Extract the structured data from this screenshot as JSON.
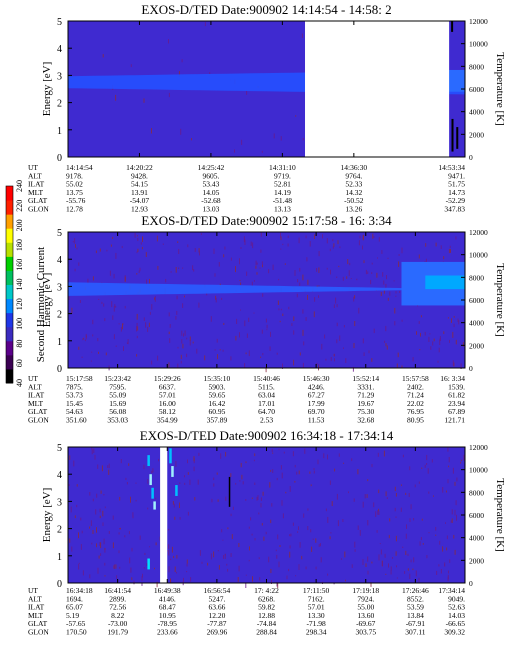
{
  "figure": {
    "colorbar": {
      "label": "Second Harmonic Current",
      "ticks": [
        "40",
        "60",
        "80",
        "100",
        "120",
        "140",
        "160",
        "180",
        "200",
        "220",
        "240"
      ],
      "colors": [
        "#000000",
        "#3a0052",
        "#5a008a",
        "#3b2bbf",
        "#1f36e6",
        "#0088ff",
        "#00c8c8",
        "#00c060",
        "#00d000",
        "#b8e000",
        "#ffff00",
        "#ffa000",
        "#ff2000",
        "#ff0000"
      ]
    },
    "background_color": "#3f2ad0"
  },
  "chart_data": [
    {
      "type": "heatmap",
      "title": "EXOS-D/TED   Date:900902  14:14:54 - 14:58: 2",
      "ylabel": "Energy [eV]",
      "ylabel_right": "Temperature [K]",
      "ylim": [
        0,
        5
      ],
      "yticks": [
        "0",
        "1",
        "2",
        "3",
        "4",
        "5"
      ],
      "ylim_right": [
        0,
        12000
      ],
      "yticks_right": [
        "0",
        "2000",
        "4000",
        "6000",
        "8000",
        "10000",
        "12000"
      ],
      "orbit_rows": [
        "UT",
        "ALT",
        "ILAT",
        "MLT",
        "GLAT",
        "GLON"
      ],
      "orbit_columns": [
        [
          "14:14:54",
          "9178.",
          "55.02",
          "13.75",
          "-55.76",
          "12.78"
        ],
        [
          "14:20:22",
          "9428.",
          "54.15",
          "13.91",
          "-54.07",
          "12.93"
        ],
        [
          "14:25:42",
          "9605.",
          "53.43",
          "14.05",
          "-52.68",
          "13.03"
        ],
        [
          "14:31:10",
          "9719.",
          "52.81",
          "14.19",
          "-51.48",
          "13.13"
        ],
        [
          "14:36:30",
          "9764.",
          "52.33",
          "14.32",
          "-50.52",
          "13.26"
        ],
        [
          "14:53:34",
          "9471.",
          "51.75",
          "14.73",
          "-52.29",
          "347.83"
        ]
      ],
      "column_x": [
        0.0,
        0.18,
        0.36,
        0.54,
        0.72,
        1.0
      ],
      "data_gaps": [
        [
          0.597,
          0.96
        ]
      ],
      "band": {
        "center_ev": 2.75,
        "start_halfwidth_ev": 0.22,
        "end_halfwidth_ev": 0.45,
        "color": "#2550ff"
      }
    },
    {
      "type": "heatmap",
      "title": "EXOS-D/TED   Date:900902  15:17:58 - 16: 3:34",
      "ylabel": "Energy [eV]",
      "ylabel_right": "Temperature [K]",
      "ylim": [
        0,
        5
      ],
      "yticks": [
        "0",
        "1",
        "2",
        "3",
        "4",
        "5"
      ],
      "ylim_right": [
        0,
        12000
      ],
      "yticks_right": [
        "0",
        "2000",
        "4000",
        "6000",
        "8000",
        "10000",
        "12000"
      ],
      "orbit_rows": [
        "UT",
        "ALT",
        "ILAT",
        "MLT",
        "GLAT",
        "GLON"
      ],
      "orbit_columns": [
        [
          "15:17:58",
          "7875.",
          "53.73",
          "15.45",
          "54.63",
          "351.60"
        ],
        [
          "15:23:42",
          "7595.",
          "55.09",
          "15.69",
          "56.08",
          "353.03"
        ],
        [
          "15:29:26",
          "6637.",
          "57.01",
          "16.00",
          "58.12",
          "354.99"
        ],
        [
          "15:35:10",
          "5903.",
          "59.65",
          "16.42",
          "60.95",
          "357.89"
        ],
        [
          "15:40:46",
          "5115.",
          "63.04",
          "17.01",
          "64.70",
          "2.53"
        ],
        [
          "15:46:30",
          "4246.",
          "67.27",
          "17.99",
          "69.70",
          "11.53"
        ],
        [
          "15:52:14",
          "3331.",
          "71.29",
          "19.67",
          "75.30",
          "32.68"
        ],
        [
          "15:57:58",
          "2402.",
          "71.24",
          "22.02",
          "76.95",
          "80.95"
        ],
        [
          "16: 3:34",
          "1539.",
          "61.82",
          "23.94",
          "67.89",
          "121.71"
        ]
      ],
      "column_x": [
        0.0,
        0.125,
        0.25,
        0.375,
        0.5,
        0.625,
        0.75,
        0.875,
        1.0
      ],
      "band": {
        "center_ev": 2.9,
        "start_halfwidth_ev": 0.25,
        "end_halfwidth_ev": 0.0,
        "color": "#2a5cff"
      }
    },
    {
      "type": "heatmap",
      "title": "EXOS-D/TED   Date:900902  16:34:18 - 17:34:14",
      "ylabel": "Energy [eV]",
      "ylabel_right": "Temperature [K]",
      "ylim": [
        0,
        5
      ],
      "yticks": [
        "0",
        "1",
        "2",
        "3",
        "4",
        "5"
      ],
      "ylim_right": [
        0,
        12000
      ],
      "yticks_right": [
        "0",
        "2000",
        "4000",
        "6000",
        "8000",
        "10000",
        "12000"
      ],
      "orbit_rows": [
        "UT",
        "ALT",
        "ILAT",
        "MLT",
        "GLAT",
        "GLON"
      ],
      "orbit_columns": [
        [
          "16:34:18",
          "1694.",
          "65.07",
          "5.19",
          "-57.65",
          "170.50"
        ],
        [
          "16:41:54",
          "2899.",
          "72.56",
          "8.22",
          "-73.00",
          "191.79"
        ],
        [
          "16:49:38",
          "4146.",
          "68.47",
          "10.95",
          "-78.95",
          "233.66"
        ],
        [
          "16:56:54",
          "5247.",
          "63.66",
          "12.20",
          "-77.87",
          "269.96"
        ],
        [
          "17: 4:22",
          "6268.",
          "59.82",
          "12.88",
          "-74.84",
          "288.84"
        ],
        [
          "17:11:50",
          "7162.",
          "57.01",
          "13.30",
          "-71.98",
          "298.34"
        ],
        [
          "17:19:18",
          "7924.",
          "55.00",
          "13.60",
          "-69.67",
          "303.75"
        ],
        [
          "17:26:46",
          "8552.",
          "53.59",
          "13.84",
          "-67.91",
          "307.11"
        ],
        [
          "17:34:14",
          "9049.",
          "52.63",
          "14.03",
          "-66.65",
          "309.32"
        ]
      ],
      "column_x": [
        0.0,
        0.125,
        0.25,
        0.375,
        0.5,
        0.625,
        0.75,
        0.875,
        1.0
      ],
      "data_gaps": [
        [
          0.232,
          0.25
        ]
      ]
    }
  ]
}
